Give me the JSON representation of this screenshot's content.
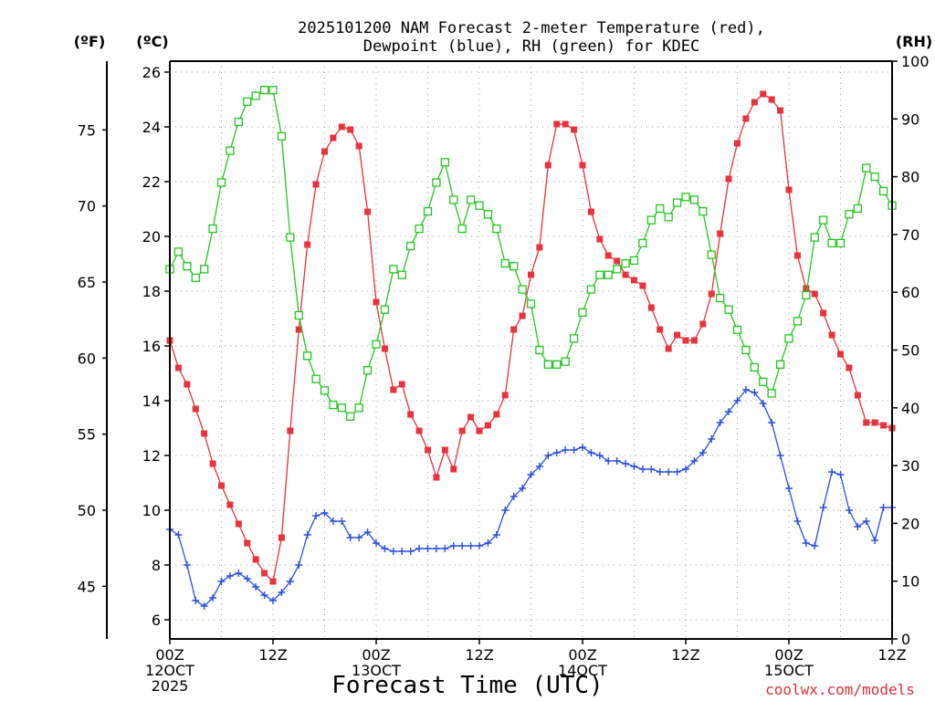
{
  "chart_data": {
    "type": "line",
    "title_lines": [
      "2025101200 NAM Forecast 2-meter Temperature (red),",
      "Dewpoint (blue), RH (green) for KDEC"
    ],
    "xlabel": "Forecast Time (UTC)",
    "credit": "coolwx.com/models",
    "x_range_hours": [
      0,
      84
    ],
    "x_ticks": [
      {
        "h": 0,
        "lines": [
          "00Z",
          "12OCT",
          "2025"
        ]
      },
      {
        "h": 12,
        "lines": [
          "12Z"
        ]
      },
      {
        "h": 24,
        "lines": [
          "00Z",
          "13OCT"
        ]
      },
      {
        "h": 36,
        "lines": [
          "12Z"
        ]
      },
      {
        "h": 48,
        "lines": [
          "00Z",
          "14OCT"
        ]
      },
      {
        "h": 60,
        "lines": [
          "12Z"
        ]
      },
      {
        "h": 72,
        "lines": [
          "00Z",
          "15OCT"
        ]
      },
      {
        "h": 84,
        "lines": [
          "12Z"
        ]
      }
    ],
    "y_left_c": {
      "label": "(ºC)",
      "range": [
        5.3,
        26.4
      ],
      "ticks": [
        "6",
        "8",
        "10",
        "12",
        "14",
        "16",
        "18",
        "20",
        "22",
        "24",
        "26"
      ]
    },
    "y_left_f": {
      "label": "(ºF)",
      "ticks": [
        "45",
        "50",
        "55",
        "60",
        "65",
        "70",
        "75"
      ]
    },
    "y_right_rh": {
      "label": "(RH)",
      "range": [
        0,
        100
      ],
      "ticks": [
        "0",
        "10",
        "20",
        "30",
        "40",
        "50",
        "60",
        "70",
        "80",
        "90",
        "100"
      ]
    },
    "series": [
      {
        "name": "Temperature (red)",
        "color": "#e8323c",
        "marker": "filled-square",
        "axis": "c",
        "hours": [
          0,
          1,
          2,
          3,
          4,
          5,
          6,
          7,
          8,
          9,
          10,
          11,
          12,
          13,
          14,
          15,
          16,
          17,
          18,
          19,
          20,
          21,
          22,
          23,
          24,
          25,
          26,
          27,
          28,
          29,
          30,
          31,
          32,
          33,
          34,
          35,
          36,
          37,
          38,
          39,
          40,
          41,
          42,
          43,
          44,
          45,
          46,
          47,
          48,
          49,
          50,
          51,
          52,
          53,
          54,
          55,
          56,
          57,
          58,
          59,
          60,
          61,
          62,
          63,
          64,
          65,
          66,
          67,
          68,
          69,
          70,
          71,
          72,
          73,
          74,
          75,
          76,
          77,
          78,
          79,
          80,
          81,
          82,
          83,
          84
        ],
        "values": [
          16.2,
          15.2,
          14.6,
          13.7,
          12.8,
          11.7,
          10.9,
          10.2,
          9.5,
          8.8,
          8.2,
          7.7,
          7.4,
          9.0,
          12.9,
          16.6,
          19.7,
          21.9,
          23.1,
          23.6,
          24.0,
          23.9,
          23.3,
          20.9,
          17.6,
          15.9,
          14.4,
          14.6,
          13.5,
          12.9,
          12.2,
          11.2,
          12.2,
          11.5,
          12.9,
          13.4,
          12.9,
          13.1,
          13.5,
          14.2,
          16.6,
          17.1,
          18.6,
          19.6,
          22.6,
          24.1,
          24.1,
          23.9,
          22.6,
          20.9,
          19.9,
          19.3,
          19.1,
          18.6,
          18.4,
          18.2,
          17.4,
          16.6,
          15.9,
          16.4,
          16.2,
          16.2,
          16.8,
          17.9,
          20.1,
          22.1,
          23.4,
          24.3,
          24.9,
          25.2,
          25.0,
          24.6,
          21.7,
          19.3,
          18.1,
          17.9,
          17.2,
          16.4,
          15.7,
          15.2,
          14.2,
          13.2,
          13.2,
          13.1,
          13.0
        ]
      },
      {
        "name": "Dewpoint (blue)",
        "color": "#2a4fe0",
        "marker": "plus",
        "axis": "c",
        "hours": [
          0,
          1,
          2,
          3,
          4,
          5,
          6,
          7,
          8,
          9,
          10,
          11,
          12,
          13,
          14,
          15,
          16,
          17,
          18,
          19,
          20,
          21,
          22,
          23,
          24,
          25,
          26,
          27,
          28,
          29,
          30,
          31,
          32,
          33,
          34,
          35,
          36,
          37,
          38,
          39,
          40,
          41,
          42,
          43,
          44,
          45,
          46,
          47,
          48,
          49,
          50,
          51,
          52,
          53,
          54,
          55,
          56,
          57,
          58,
          59,
          60,
          61,
          62,
          63,
          64,
          65,
          66,
          67,
          68,
          69,
          70,
          71,
          72,
          73,
          74,
          75,
          76,
          77,
          78,
          79,
          80,
          81,
          82,
          83,
          84
        ],
        "values": [
          9.3,
          9.1,
          8.0,
          6.7,
          6.5,
          6.8,
          7.4,
          7.6,
          7.7,
          7.5,
          7.2,
          6.9,
          6.7,
          7.0,
          7.4,
          8.0,
          9.1,
          9.8,
          9.9,
          9.6,
          9.6,
          9.0,
          9.0,
          9.2,
          8.8,
          8.6,
          8.5,
          8.5,
          8.5,
          8.6,
          8.6,
          8.6,
          8.6,
          8.7,
          8.7,
          8.7,
          8.7,
          8.8,
          9.1,
          10.0,
          10.5,
          10.8,
          11.3,
          11.6,
          12.0,
          12.1,
          12.2,
          12.2,
          12.3,
          12.1,
          12.0,
          11.8,
          11.8,
          11.7,
          11.6,
          11.5,
          11.5,
          11.4,
          11.4,
          11.4,
          11.5,
          11.8,
          12.1,
          12.6,
          13.2,
          13.6,
          14.0,
          14.4,
          14.3,
          13.9,
          13.2,
          12.0,
          10.8,
          9.6,
          8.8,
          8.7,
          10.1,
          11.4,
          11.3,
          10.0,
          9.4,
          9.6,
          8.9,
          10.1,
          10.1
        ]
      },
      {
        "name": "RH (green)",
        "color": "#22c81e",
        "marker": "open-square",
        "axis": "rh",
        "hours": [
          0,
          1,
          2,
          3,
          4,
          5,
          6,
          7,
          8,
          9,
          10,
          11,
          12,
          13,
          14,
          15,
          16,
          17,
          18,
          19,
          20,
          21,
          22,
          23,
          24,
          25,
          26,
          27,
          28,
          29,
          30,
          31,
          32,
          33,
          34,
          35,
          36,
          37,
          38,
          39,
          40,
          41,
          42,
          43,
          44,
          45,
          46,
          47,
          48,
          49,
          50,
          51,
          52,
          53,
          54,
          55,
          56,
          57,
          58,
          59,
          60,
          61,
          62,
          63,
          64,
          65,
          66,
          67,
          68,
          69,
          70,
          71,
          72,
          73,
          74,
          75,
          76,
          77,
          78,
          79,
          80,
          81,
          82,
          83,
          84
        ],
        "values": [
          64.0,
          67.0,
          64.5,
          62.5,
          64.0,
          71.0,
          79.0,
          84.5,
          89.5,
          93.0,
          94.0,
          95.0,
          95.0,
          87.0,
          69.5,
          56.0,
          49.0,
          45.0,
          43.0,
          40.5,
          40.0,
          38.5,
          40.0,
          46.5,
          51.0,
          57.0,
          64.0,
          63.0,
          68.0,
          71.0,
          74.0,
          79.0,
          82.5,
          76.0,
          71.0,
          76.0,
          75.0,
          73.5,
          71.0,
          65.0,
          64.5,
          60.5,
          58.0,
          50.0,
          47.5,
          47.5,
          48.0,
          52.0,
          56.5,
          60.5,
          63.0,
          63.0,
          64.0,
          65.0,
          65.5,
          68.5,
          72.5,
          74.5,
          73.0,
          75.5,
          76.5,
          76.0,
          74.0,
          66.5,
          59.0,
          57.0,
          53.5,
          50.0,
          47.0,
          44.5,
          42.5,
          47.5,
          52.0,
          55.0,
          59.5,
          69.5,
          72.5,
          68.5,
          68.5,
          73.5,
          74.5,
          81.5,
          80.0,
          77.5,
          75.0
        ]
      }
    ]
  }
}
